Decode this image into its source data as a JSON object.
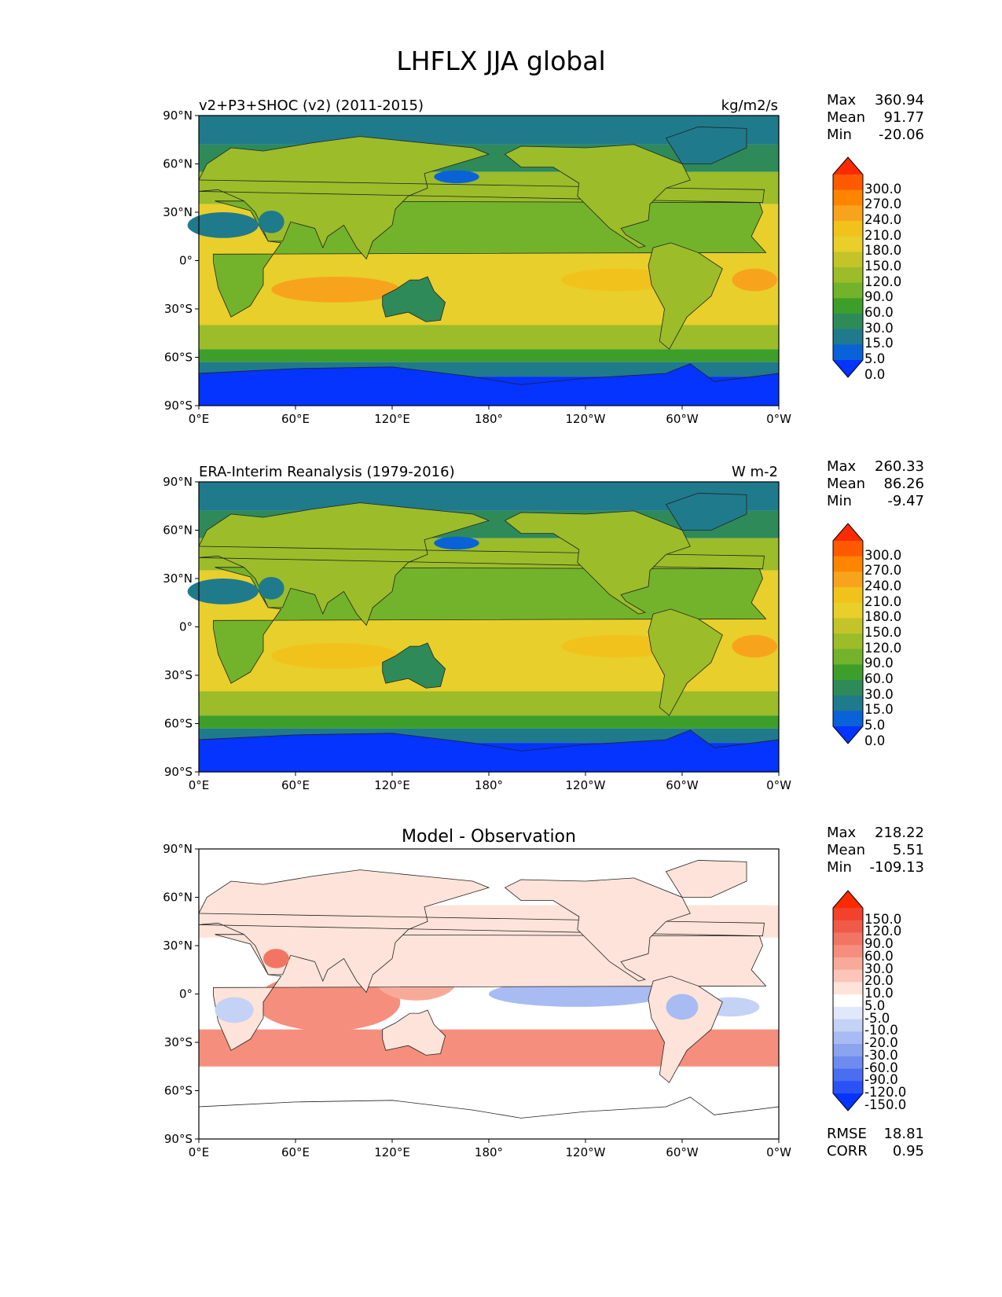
{
  "title": "LHFLX JJA global",
  "panels": [
    {
      "left_title": "v2+P3+SHOC (v2) (2011-2015)",
      "right_title": "kg/m2/s",
      "stats": [
        {
          "label": "Max",
          "value": "360.94"
        },
        {
          "label": "Mean",
          "value": "91.77"
        },
        {
          "label": "Min",
          "value": "-20.06"
        }
      ]
    },
    {
      "left_title": "ERA-Interim Reanalysis (1979-2016)",
      "right_title": "W m-2",
      "stats": [
        {
          "label": "Max",
          "value": "260.33"
        },
        {
          "label": "Mean",
          "value": "86.26"
        },
        {
          "label": "Min",
          "value": "-9.47"
        }
      ]
    },
    {
      "center_title": "Model - Observation",
      "stats": [
        {
          "label": "Max",
          "value": "218.22"
        },
        {
          "label": "Mean",
          "value": "5.51"
        },
        {
          "label": "Min",
          "value": "-109.13"
        }
      ],
      "metrics": [
        {
          "label": "RMSE",
          "value": "18.81"
        },
        {
          "label": "CORR",
          "value": "0.95"
        }
      ]
    }
  ],
  "chart_data": {
    "type": "heatmap",
    "x_ticks": [
      "0°E",
      "60°E",
      "120°E",
      "180°",
      "120°W",
      "60°W",
      "0°W"
    ],
    "y_ticks": [
      "90°N",
      "60°N",
      "30°N",
      "0°",
      "30°S",
      "60°S",
      "90°S"
    ],
    "xlim": [
      0,
      360
    ],
    "ylim": [
      -90,
      90
    ],
    "colorbar_levels": [
      "300.0",
      "270.0",
      "240.0",
      "210.0",
      "180.0",
      "150.0",
      "120.0",
      "90.0",
      "60.0",
      "30.0",
      "15.0",
      "5.0",
      "0.0"
    ],
    "colorbar_colors": [
      "#ff2a00",
      "#ff5a00",
      "#ff8500",
      "#f7a41c",
      "#f2c21c",
      "#e8cf2b",
      "#c4c42a",
      "#9cbc2a",
      "#72b32b",
      "#3e9e2a",
      "#2f8a5a",
      "#1f7a8c",
      "#0a62d8",
      "#0533ff"
    ],
    "diff_colorbar_levels": [
      "150.0",
      "120.0",
      "90.0",
      "60.0",
      "30.0",
      "20.0",
      "10.0",
      "5.0",
      "-5.0",
      "-10.0",
      "-20.0",
      "-30.0",
      "-60.0",
      "-90.0",
      "-120.0",
      "-150.0"
    ],
    "diff_colorbar_colors": [
      "#ff2a00",
      "#f2412c",
      "#f05a48",
      "#f27564",
      "#f58e7d",
      "#f8aa99",
      "#fbc6b8",
      "#fde3d9",
      "#ffffff",
      "#e2e8fb",
      "#c4d2f6",
      "#a8bcf3",
      "#8aa4f0",
      "#6d8cee",
      "#4a6ef0",
      "#2a52f5",
      "#0533ff"
    ],
    "colors": {
      "ocean_tropics": "#e8cf2b",
      "ocean_midlat": "#9cbc2a",
      "polar": "#1f7a8c",
      "antarctica": "#0533ff",
      "diff_positive": "#f58e7d",
      "diff_negative": "#a8bcf3"
    }
  }
}
